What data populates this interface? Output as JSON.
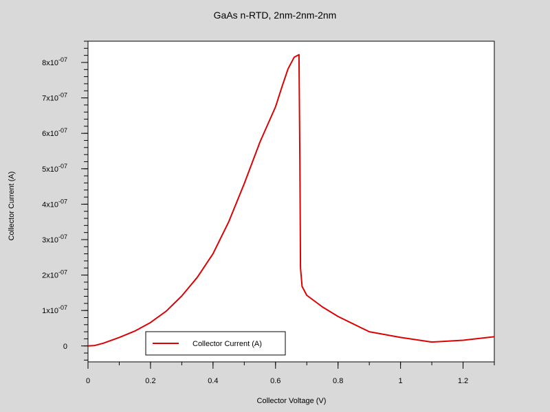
{
  "chart_data": {
    "type": "line",
    "title": "GaAs n-RTD, 2nm-2nm-2nm",
    "xlabel": "Collector Voltage (V)",
    "ylabel": "Collector Current (A)",
    "xlim": [
      0,
      1.3
    ],
    "ylim": [
      -4.5e-08,
      8.6e-07
    ],
    "x_ticks": [
      0,
      0.2,
      0.4,
      0.6,
      0.8,
      1,
      1.2
    ],
    "x_tick_labels": [
      "0",
      "0.2",
      "0.4",
      "0.6",
      "0.8",
      "1",
      "1.2"
    ],
    "y_ticks": [
      0,
      1e-07,
      2e-07,
      3e-07,
      4e-07,
      5e-07,
      6e-07,
      7e-07,
      8e-07
    ],
    "y_tick_labels": [
      {
        "mant": "0",
        "exp": ""
      },
      {
        "mant": "1x10",
        "exp": "-07"
      },
      {
        "mant": "2x10",
        "exp": "-07"
      },
      {
        "mant": "3x10",
        "exp": "-07"
      },
      {
        "mant": "4x10",
        "exp": "-07"
      },
      {
        "mant": "5x10",
        "exp": "-07"
      },
      {
        "mant": "6x10",
        "exp": "-07"
      },
      {
        "mant": "7x10",
        "exp": "-07"
      },
      {
        "mant": "8x10",
        "exp": "-07"
      }
    ],
    "legend": "bottom-left",
    "grid": false,
    "series": [
      {
        "name": "Collector Current (A)",
        "color": "#dd0000",
        "x": [
          0,
          0.02,
          0.05,
          0.1,
          0.15,
          0.2,
          0.25,
          0.3,
          0.35,
          0.4,
          0.45,
          0.5,
          0.55,
          0.6,
          0.62,
          0.64,
          0.66,
          0.675,
          0.678,
          0.68,
          0.685,
          0.7,
          0.75,
          0.8,
          0.9,
          1.0,
          1.1,
          1.2,
          1.3
        ],
        "y": [
          0,
          1e-09,
          8e-09,
          2.4e-08,
          4.2e-08,
          6.6e-08,
          9.8e-08,
          1.41e-07,
          1.94e-07,
          2.6e-07,
          3.5e-07,
          4.58e-07,
          5.75e-07,
          6.75e-07,
          7.3e-07,
          7.82e-07,
          8.15e-07,
          8.22e-07,
          5.2e-07,
          2.2e-07,
          1.68e-07,
          1.43e-07,
          1.1e-07,
          8.3e-08,
          4e-08,
          2.4e-08,
          1.1e-08,
          1.6e-08,
          2.6e-08
        ]
      }
    ]
  }
}
